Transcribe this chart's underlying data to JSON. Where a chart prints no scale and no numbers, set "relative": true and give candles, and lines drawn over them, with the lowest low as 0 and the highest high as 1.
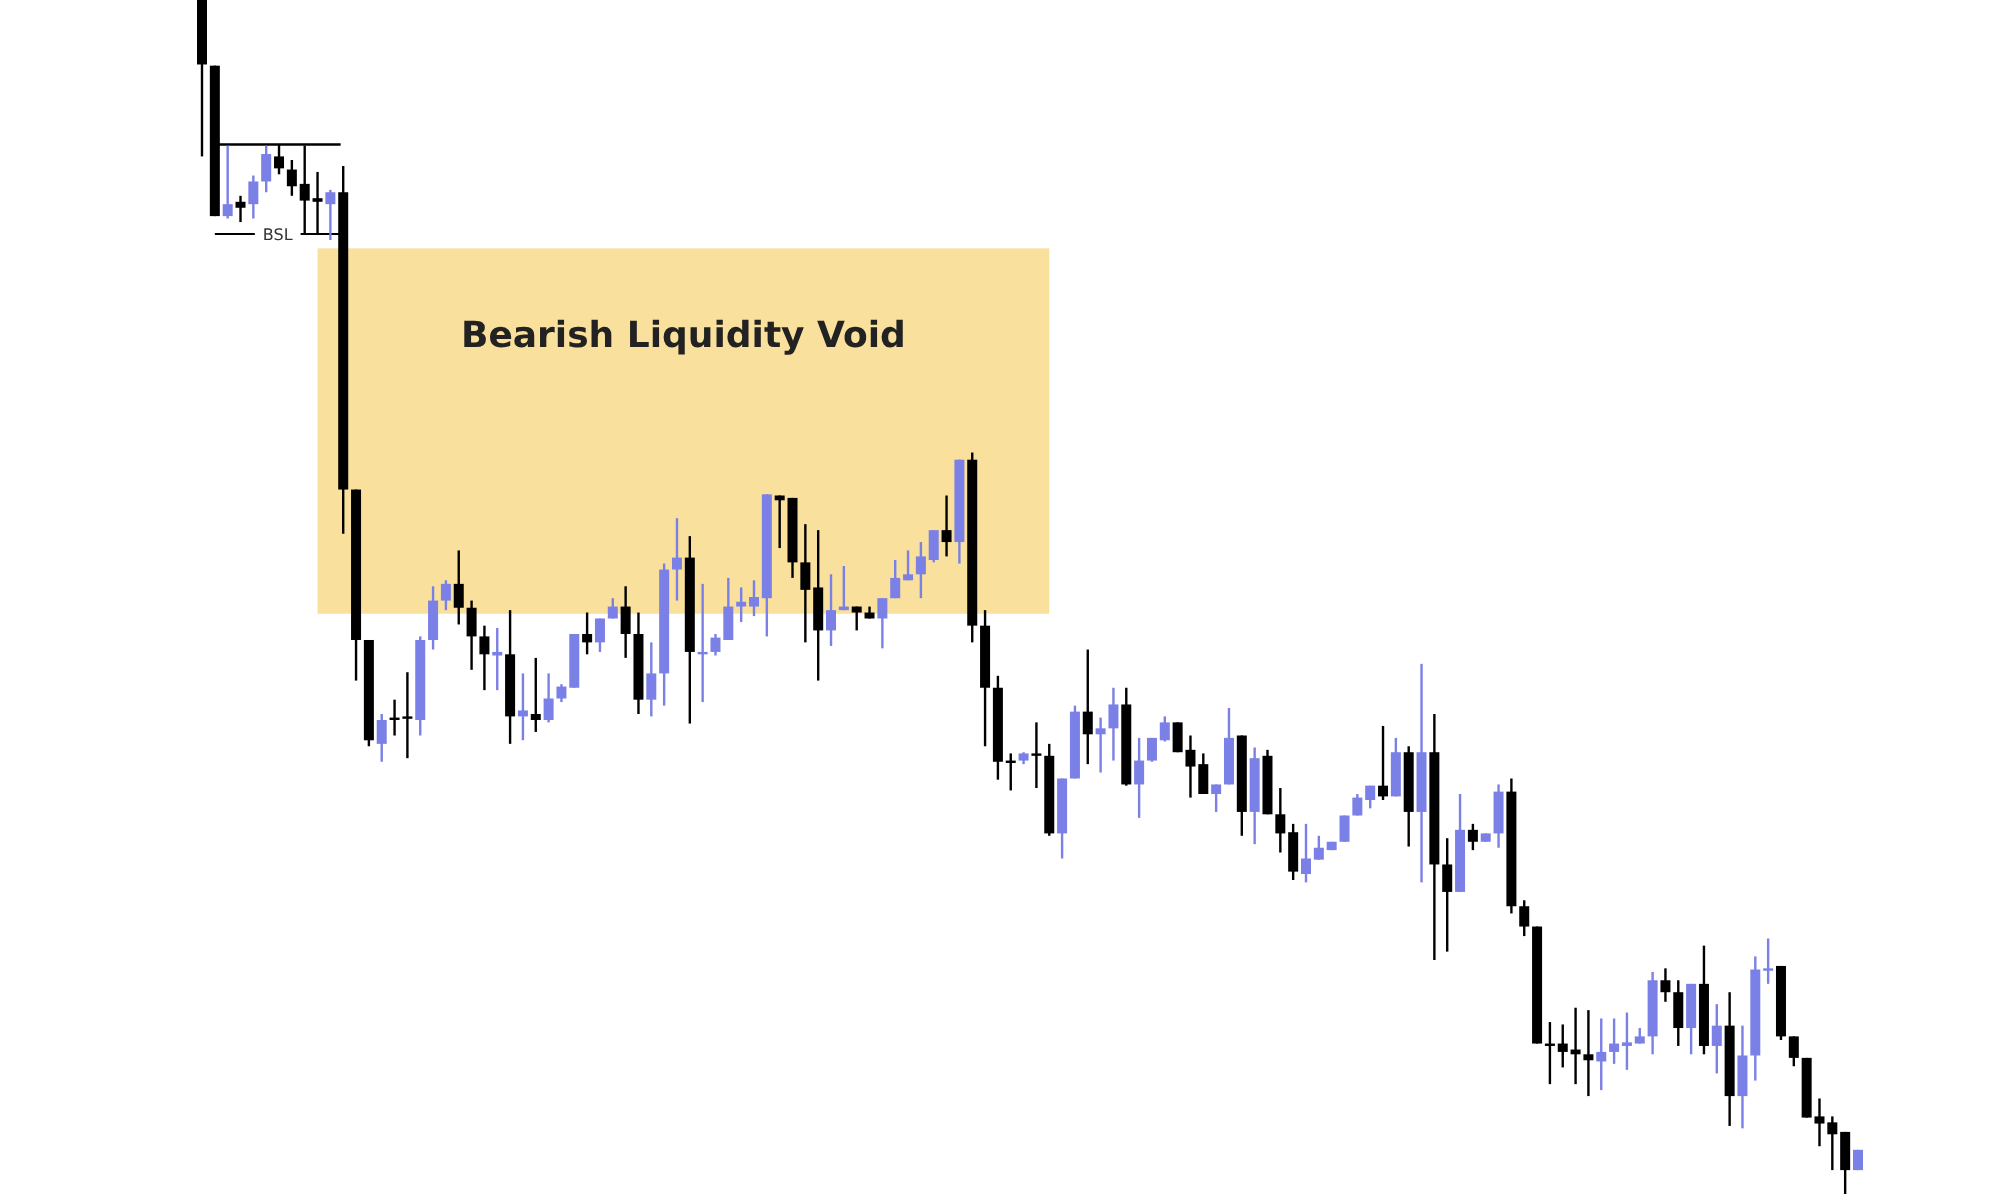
{
  "chart_data": {
    "type": "candlestick",
    "relative": true,
    "categories": [
      null,
      null,
      null,
      null,
      null,
      null,
      null,
      null,
      null,
      null,
      null,
      null,
      null,
      null,
      null,
      null,
      null,
      null,
      null,
      null,
      null,
      null,
      null,
      null,
      null,
      null,
      null,
      null,
      null,
      null,
      null,
      null,
      null,
      null,
      null,
      null,
      null,
      null,
      null,
      null,
      null,
      null,
      null,
      null,
      null,
      null,
      null,
      null,
      null,
      null,
      null,
      null,
      null,
      null,
      null,
      null,
      null,
      null,
      null,
      null,
      null,
      null,
      null,
      null,
      null,
      null,
      null,
      null,
      null,
      null,
      null,
      null,
      null,
      null,
      null,
      null,
      null,
      null,
      null,
      null,
      null,
      null,
      null,
      null,
      null,
      null,
      null,
      null,
      null,
      null,
      null,
      null,
      null,
      null,
      null,
      null,
      null,
      null,
      null,
      null,
      null,
      null,
      null,
      null,
      null,
      null,
      null,
      null,
      null,
      null,
      null,
      null,
      null,
      null,
      null,
      null,
      null,
      null,
      null,
      null,
      null,
      null,
      null,
      null,
      null,
      null,
      null,
      null,
      null,
      null
    ],
    "ohlc": [
      [
        1,
        1,
        0.869,
        0.946
      ],
      [
        0.945,
        0.945,
        0.819,
        0.819
      ],
      [
        0.819,
        0.878,
        0.817,
        0.829
      ],
      [
        0.831,
        0.836,
        0.814,
        0.826
      ],
      [
        0.829,
        0.853,
        0.817,
        0.848
      ],
      [
        0.848,
        0.878,
        0.839,
        0.871
      ],
      [
        0.869,
        0.879,
        0.854,
        0.859
      ],
      [
        0.858,
        0.866,
        0.836,
        0.844
      ],
      [
        0.846,
        0.878,
        0.804,
        0.832
      ],
      [
        0.834,
        0.856,
        0.804,
        0.831
      ],
      [
        0.829,
        0.841,
        0.799,
        0.839
      ],
      [
        0.839,
        0.861,
        0.553,
        0.59
      ],
      [
        0.59,
        0.59,
        0.43,
        0.464
      ],
      [
        0.464,
        0.464,
        0.375,
        0.38
      ],
      [
        0.377,
        0.402,
        0.362,
        0.397
      ],
      [
        0.399,
        0.414,
        0.384,
        0.397
      ],
      [
        0.4,
        0.437,
        0.365,
        0.399
      ],
      [
        0.397,
        0.467,
        0.384,
        0.464
      ],
      [
        0.464,
        0.509,
        0.456,
        0.497
      ],
      [
        0.497,
        0.514,
        0.489,
        0.511
      ],
      [
        0.511,
        0.539,
        0.477,
        0.491
      ],
      [
        0.491,
        0.497,
        0.439,
        0.467
      ],
      [
        0.467,
        0.476,
        0.422,
        0.452
      ],
      [
        0.451,
        0.474,
        0.422,
        0.454
      ],
      [
        0.452,
        0.489,
        0.377,
        0.4
      ],
      [
        0.4,
        0.436,
        0.38,
        0.405
      ],
      [
        0.402,
        0.449,
        0.387,
        0.397
      ],
      [
        0.397,
        0.436,
        0.395,
        0.415
      ],
      [
        0.415,
        0.427,
        0.412,
        0.425
      ],
      [
        0.424,
        0.469,
        0.424,
        0.469
      ],
      [
        0.469,
        0.487,
        0.452,
        0.462
      ],
      [
        0.462,
        0.482,
        0.454,
        0.482
      ],
      [
        0.482,
        0.499,
        0.482,
        0.492
      ],
      [
        0.492,
        0.509,
        0.449,
        0.469
      ],
      [
        0.469,
        0.487,
        0.402,
        0.414
      ],
      [
        0.414,
        0.462,
        0.4,
        0.436
      ],
      [
        0.436,
        0.528,
        0.409,
        0.523
      ],
      [
        0.523,
        0.566,
        0.497,
        0.533
      ],
      [
        0.533,
        0.551,
        0.394,
        0.454
      ],
      [
        0.452,
        0.511,
        0.412,
        0.454
      ],
      [
        0.454,
        0.469,
        0.451,
        0.466
      ],
      [
        0.464,
        0.516,
        0.464,
        0.492
      ],
      [
        0.492,
        0.508,
        0.479,
        0.496
      ],
      [
        0.492,
        0.514,
        0.484,
        0.5
      ],
      [
        0.499,
        0.586,
        0.467,
        0.586
      ],
      [
        0.585,
        0.585,
        0.541,
        0.581
      ],
      [
        0.583,
        0.583,
        0.516,
        0.529
      ],
      [
        0.529,
        0.561,
        0.462,
        0.506
      ],
      [
        0.508,
        0.556,
        0.43,
        0.472
      ],
      [
        0.472,
        0.519,
        0.459,
        0.489
      ],
      [
        0.489,
        0.526,
        0.489,
        0.492
      ],
      [
        0.492,
        0.492,
        0.472,
        0.487
      ],
      [
        0.487,
        0.492,
        0.482,
        0.482
      ],
      [
        0.482,
        0.499,
        0.457,
        0.499
      ],
      [
        0.499,
        0.531,
        0.499,
        0.516
      ],
      [
        0.514,
        0.539,
        0.514,
        0.519
      ],
      [
        0.519,
        0.546,
        0.499,
        0.534
      ],
      [
        0.531,
        0.556,
        0.529,
        0.556
      ],
      [
        0.556,
        0.585,
        0.534,
        0.546
      ],
      [
        0.546,
        0.615,
        0.528,
        0.615
      ],
      [
        0.615,
        0.621,
        0.462,
        0.476
      ],
      [
        0.476,
        0.489,
        0.375,
        0.424
      ],
      [
        0.424,
        0.434,
        0.347,
        0.362
      ],
      [
        0.363,
        0.369,
        0.338,
        0.362
      ],
      [
        0.363,
        0.37,
        0.36,
        0.369
      ],
      [
        0.369,
        0.395,
        0.34,
        0.367
      ],
      [
        0.367,
        0.377,
        0.3,
        0.302
      ],
      [
        0.302,
        0.348,
        0.281,
        0.348
      ],
      [
        0.348,
        0.409,
        0.348,
        0.404
      ],
      [
        0.404,
        0.456,
        0.36,
        0.385
      ],
      [
        0.385,
        0.399,
        0.353,
        0.39
      ],
      [
        0.39,
        0.424,
        0.363,
        0.41
      ],
      [
        0.41,
        0.424,
        0.342,
        0.343
      ],
      [
        0.343,
        0.382,
        0.315,
        0.363
      ],
      [
        0.363,
        0.382,
        0.362,
        0.382
      ],
      [
        0.38,
        0.4,
        0.379,
        0.395
      ],
      [
        0.395,
        0.395,
        0.37,
        0.37
      ],
      [
        0.372,
        0.384,
        0.332,
        0.358
      ],
      [
        0.36,
        0.369,
        0.335,
        0.335
      ],
      [
        0.335,
        0.343,
        0.32,
        0.343
      ],
      [
        0.343,
        0.407,
        0.343,
        0.382
      ],
      [
        0.384,
        0.384,
        0.3,
        0.32
      ],
      [
        0.32,
        0.374,
        0.293,
        0.365
      ],
      [
        0.367,
        0.372,
        0.318,
        0.318
      ],
      [
        0.318,
        0.34,
        0.286,
        0.302
      ],
      [
        0.303,
        0.31,
        0.263,
        0.27
      ],
      [
        0.268,
        0.31,
        0.261,
        0.281
      ],
      [
        0.28,
        0.3,
        0.28,
        0.29
      ],
      [
        0.288,
        0.295,
        0.288,
        0.295
      ],
      [
        0.295,
        0.317,
        0.295,
        0.317
      ],
      [
        0.317,
        0.335,
        0.317,
        0.332
      ],
      [
        0.33,
        0.342,
        0.323,
        0.342
      ],
      [
        0.342,
        0.392,
        0.33,
        0.333
      ],
      [
        0.333,
        0.382,
        0.333,
        0.37
      ],
      [
        0.37,
        0.375,
        0.291,
        0.32
      ],
      [
        0.32,
        0.444,
        0.261,
        0.37
      ],
      [
        0.37,
        0.402,
        0.196,
        0.276
      ],
      [
        0.276,
        0.298,
        0.203,
        0.253
      ],
      [
        0.253,
        0.335,
        0.253,
        0.305
      ],
      [
        0.305,
        0.31,
        0.288,
        0.295
      ],
      [
        0.295,
        0.302,
        0.295,
        0.302
      ],
      [
        0.302,
        0.343,
        0.29,
        0.337
      ],
      [
        0.337,
        0.348,
        0.235,
        0.241
      ],
      [
        0.241,
        0.246,
        0.216,
        0.224
      ],
      [
        0.224,
        0.224,
        0.126,
        0.126
      ],
      [
        0.126,
        0.144,
        0.092,
        0.124
      ],
      [
        0.126,
        0.142,
        0.106,
        0.119
      ],
      [
        0.121,
        0.156,
        0.092,
        0.117
      ],
      [
        0.117,
        0.154,
        0.082,
        0.112
      ],
      [
        0.111,
        0.147,
        0.087,
        0.119
      ],
      [
        0.119,
        0.147,
        0.109,
        0.126
      ],
      [
        0.124,
        0.152,
        0.104,
        0.127
      ],
      [
        0.126,
        0.139,
        0.126,
        0.132
      ],
      [
        0.132,
        0.186,
        0.117,
        0.179
      ],
      [
        0.179,
        0.189,
        0.161,
        0.169
      ],
      [
        0.169,
        0.179,
        0.124,
        0.139
      ],
      [
        0.139,
        0.176,
        0.117,
        0.176
      ],
      [
        0.176,
        0.208,
        0.117,
        0.124
      ],
      [
        0.124,
        0.159,
        0.101,
        0.141
      ],
      [
        0.141,
        0.169,
        0.057,
        0.082
      ],
      [
        0.082,
        0.141,
        0.055,
        0.116
      ],
      [
        0.116,
        0.199,
        0.095,
        0.188
      ],
      [
        0.188,
        0.214,
        0.176,
        0.189
      ],
      [
        0.191,
        0.191,
        0.129,
        0.132
      ],
      [
        0.132,
        0.132,
        0.107,
        0.114
      ],
      [
        0.114,
        0.114,
        0.064,
        0.064
      ],
      [
        0.065,
        0.08,
        0.04,
        0.059
      ],
      [
        0.06,
        0.065,
        0.02,
        0.05
      ],
      [
        0.052,
        0.052,
        0,
        0.02
      ],
      [
        0.02,
        0.037,
        0.02,
        0.037
      ]
    ],
    "bands": [
      {
        "axis": "y",
        "from": 0.486,
        "to": 0.792,
        "label": "Bearish Liquidity Void",
        "color": "#f9e09c"
      }
    ],
    "ref_lines": [
      {
        "axis": "y",
        "value": 0.804,
        "label": "BSL",
        "color": "#000000"
      }
    ]
  }
}
